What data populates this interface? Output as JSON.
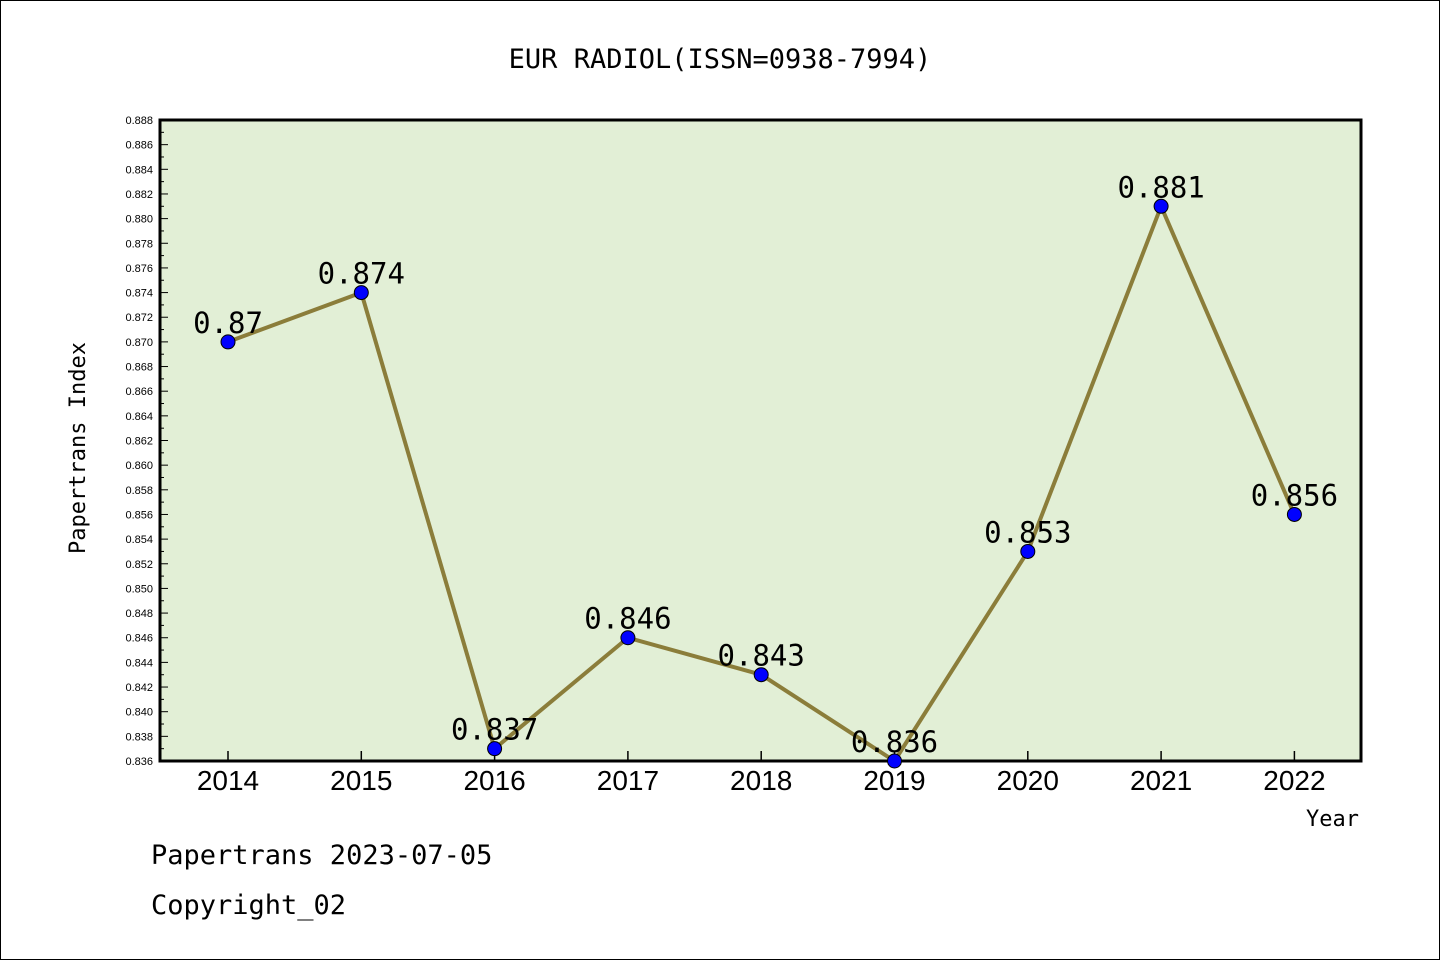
{
  "chart_data": {
    "type": "line",
    "title": "EUR RADIOL(ISSN=0938-7994)",
    "xlabel": "Year",
    "ylabel": "Papertrans Index",
    "categories": [
      "2014",
      "2015",
      "2016",
      "2017",
      "2018",
      "2019",
      "2020",
      "2021",
      "2022"
    ],
    "series": [
      {
        "values": [
          0.87,
          0.874,
          0.837,
          0.846,
          0.843,
          0.836,
          0.853,
          0.881,
          0.856
        ],
        "data_labels": [
          "0.87",
          "0.874",
          "0.837",
          "0.846",
          "0.843",
          "0.836",
          "0.853",
          "0.881",
          "0.856"
        ]
      }
    ],
    "ylim": [
      0.836,
      0.888
    ],
    "yticks": [
      "0.836",
      "0.838",
      "0.840",
      "0.842",
      "0.844",
      "0.846",
      "0.848",
      "0.850",
      "0.852",
      "0.854",
      "0.856",
      "0.858",
      "0.860",
      "0.862",
      "0.864",
      "0.866",
      "0.868",
      "0.870",
      "0.872",
      "0.874",
      "0.876",
      "0.878",
      "0.880",
      "0.882",
      "0.884",
      "0.886",
      "0.888"
    ],
    "grid": false,
    "legend": "none",
    "colors": {
      "plot_background": "#e2efd6",
      "line": "#8b7d3a",
      "marker": "#0000ff"
    }
  },
  "footer": {
    "line1": "Papertrans 2023-07-05",
    "line2": "Copyright_02"
  }
}
